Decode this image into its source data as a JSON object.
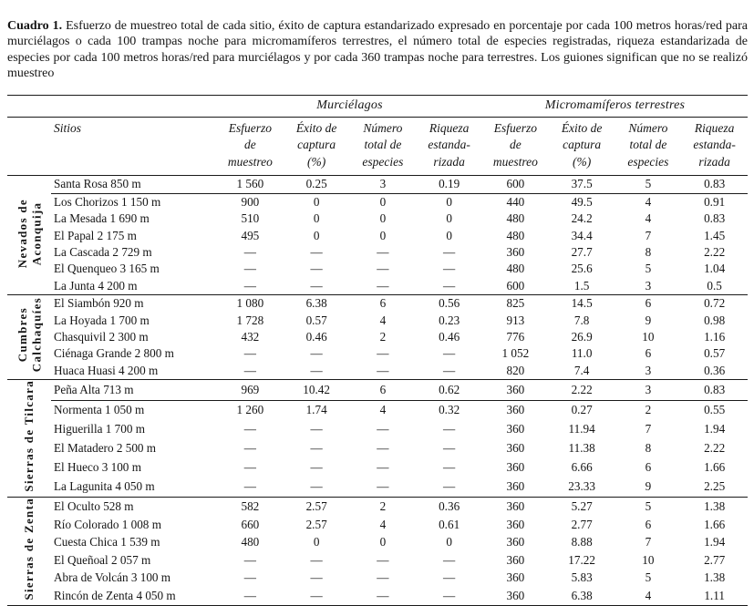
{
  "caption": {
    "label": "Cuadro 1.",
    "text": "Esfuerzo de muestreo total de cada sitio, éxito de captura estandarizado expresado en porcentaje por cada 100 metros horas/red para murciélagos o cada 100 trampas noche para micromamíferos terrestres, el número total de especies registradas, riqueza estandarizada de especies por cada 100 metros horas/red para murciélagos y por cada 360 trampas noche para terrestres. Los guiones significan que no se realizó muestreo"
  },
  "table": {
    "sections": [
      "Murciélagos",
      "Micromamíferos terrestres"
    ],
    "sites_header": "Sitios",
    "metric_headers": [
      {
        "id": "esfuerzo-de-muestreo",
        "lines": [
          "Esfuerzo",
          "de",
          "muestreo"
        ]
      },
      {
        "id": "exito-de-captura",
        "lines": [
          "Éxito de",
          "captura",
          "(%)"
        ]
      },
      {
        "id": "numero-total-especies",
        "lines": [
          "Número",
          "total de",
          "especies"
        ]
      },
      {
        "id": "riqueza-estandarizada",
        "lines": [
          "Riqueza",
          "estanda-",
          "rizada"
        ]
      }
    ],
    "no_sampling_mark": "—",
    "groups": [
      {
        "id": "nevados-de-aconquija",
        "label_lines": [
          "Nevados de",
          "Aconquija"
        ],
        "rows": [
          {
            "site": "Santa Rosa 850 m",
            "rule_below": true,
            "values": [
              "1 560",
              "0.25",
              "3",
              "0.19",
              "600",
              "37.5",
              "5",
              "0.83"
            ]
          },
          {
            "site": "Los Chorizos 1 150 m",
            "values": [
              "900",
              "0",
              "0",
              "0",
              "440",
              "49.5",
              "4",
              "0.91"
            ]
          },
          {
            "site": "La Mesada 1 690 m",
            "values": [
              "510",
              "0",
              "0",
              "0",
              "480",
              "24.2",
              "4",
              "0.83"
            ]
          },
          {
            "site": "El Papal 2 175 m",
            "values": [
              "495",
              "0",
              "0",
              "0",
              "480",
              "34.4",
              "7",
              "1.45"
            ]
          },
          {
            "site": "La Cascada 2 729 m",
            "values": [
              "—",
              "—",
              "—",
              "—",
              "360",
              "27.7",
              "8",
              "2.22"
            ]
          },
          {
            "site": "El Quenqueo 3 165 m",
            "values": [
              "—",
              "—",
              "—",
              "—",
              "480",
              "25.6",
              "5",
              "1.04"
            ]
          },
          {
            "site": "La Junta 4 200 m",
            "values": [
              "—",
              "—",
              "—",
              "—",
              "600",
              "1.5",
              "3",
              "0.5"
            ]
          }
        ]
      },
      {
        "id": "cumbres-calchaquies",
        "label_lines": [
          "Cumbres",
          "Calchaquíes"
        ],
        "rows": [
          {
            "site": "El Siambón 920 m",
            "values": [
              "1 080",
              "6.38",
              "6",
              "0.56",
              "825",
              "14.5",
              "6",
              "0.72"
            ]
          },
          {
            "site": "La Hoyada 1 700 m",
            "values": [
              "1 728",
              "0.57",
              "4",
              "0.23",
              "913",
              "7.8",
              "9",
              "0.98"
            ]
          },
          {
            "site": "Chasquivil 2 300 m",
            "values": [
              "432",
              "0.46",
              "2",
              "0.46",
              "776",
              "26.9",
              "10",
              "1.16"
            ]
          },
          {
            "site": "Ciénaga Grande 2 800 m",
            "values": [
              "—",
              "—",
              "—",
              "—",
              "1 052",
              "11.0",
              "6",
              "0.57"
            ]
          },
          {
            "site": "Huaca Huasi 4 200 m",
            "values": [
              "—",
              "—",
              "—",
              "—",
              "820",
              "7.4",
              "3",
              "0.36"
            ]
          }
        ]
      },
      {
        "id": "sierras-de-tilcara",
        "label_lines": [
          "Sierras de Tilcara"
        ],
        "rows": [
          {
            "site": "Peña Alta 713 m",
            "rule_below": true,
            "values": [
              "969",
              "10.42",
              "6",
              "0.62",
              "360",
              "2.22",
              "3",
              "0.83"
            ]
          },
          {
            "site": "Normenta 1 050 m",
            "values": [
              "1 260",
              "1.74",
              "4",
              "0.32",
              "360",
              "0.27",
              "2",
              "0.55"
            ]
          },
          {
            "site": "Higuerilla 1 700 m",
            "values": [
              "—",
              "—",
              "—",
              "—",
              "360",
              "11.94",
              "7",
              "1.94"
            ]
          },
          {
            "site": "El Matadero 2 500 m",
            "values": [
              "—",
              "—",
              "—",
              "—",
              "360",
              "11.38",
              "8",
              "2.22"
            ]
          },
          {
            "site": "El Hueco 3 100 m",
            "values": [
              "—",
              "—",
              "—",
              "—",
              "360",
              "6.66",
              "6",
              "1.66"
            ]
          },
          {
            "site": "La Lagunita 4 050 m",
            "values": [
              "—",
              "—",
              "—",
              "—",
              "360",
              "23.33",
              "9",
              "2.25"
            ]
          }
        ]
      },
      {
        "id": "sierras-de-zenta",
        "label_lines": [
          "Sierras de Zenta"
        ],
        "rows": [
          {
            "site": "El Oculto 528 m",
            "values": [
              "582",
              "2.57",
              "2",
              "0.36",
              "360",
              "5.27",
              "5",
              "1.38"
            ]
          },
          {
            "site": "Río Colorado 1 008 m",
            "values": [
              "660",
              "2.57",
              "4",
              "0.61",
              "360",
              "2.77",
              "6",
              "1.66"
            ]
          },
          {
            "site": "Cuesta Chica 1 539 m",
            "values": [
              "480",
              "0",
              "0",
              "0",
              "360",
              "8.88",
              "7",
              "1.94"
            ]
          },
          {
            "site": "El Queñoal 2 057 m",
            "values": [
              "—",
              "—",
              "—",
              "—",
              "360",
              "17.22",
              "10",
              "2.77"
            ]
          },
          {
            "site": "Abra de Volcán 3 100 m",
            "values": [
              "—",
              "—",
              "—",
              "—",
              "360",
              "5.83",
              "5",
              "1.38"
            ]
          },
          {
            "site": "Rincón de Zenta 4 050 m",
            "values": [
              "—",
              "—",
              "—",
              "—",
              "360",
              "6.38",
              "4",
              "1.11"
            ]
          }
        ]
      }
    ]
  }
}
